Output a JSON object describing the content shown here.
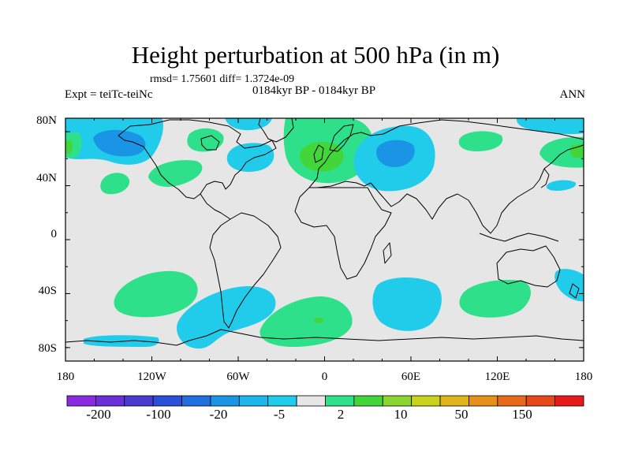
{
  "title": "Height perturbation at 500 hPa (in m)",
  "stats": "rmsd= 1.75601 diff= 1.3724e-09",
  "experiment": "Expt = teiTc-teiNc",
  "period": "0184kyr BP - 0184kyr BP",
  "season": "ANN",
  "axes": {
    "x_ticks": [
      "180",
      "120W",
      "60W",
      "0",
      "60E",
      "120E",
      "180"
    ],
    "y_ticks": [
      "80N",
      "40N",
      "0",
      "40S",
      "80S"
    ]
  },
  "colorbar": {
    "colors": [
      "#8a2be2",
      "#6a2fd8",
      "#4a3bd0",
      "#2a4fd8",
      "#1f6fe0",
      "#1a95e6",
      "#1cb5ec",
      "#20ccea",
      "#e6e6e6",
      "#2ee08a",
      "#43d63a",
      "#8ad630",
      "#c9d21c",
      "#e0b51a",
      "#e6901a",
      "#e66a1a",
      "#e6481a",
      "#e61a1a"
    ],
    "labels": [
      "-200",
      "-100",
      "-20",
      "-5",
      "2",
      "10",
      "50",
      "150"
    ]
  },
  "chart_data": {
    "type": "heatmap",
    "title": "Height perturbation at 500 hPa (in m)",
    "xlim": [
      -180,
      180
    ],
    "ylim": [
      -90,
      90
    ],
    "units": "m",
    "contour_levels": [
      "-200",
      "-100",
      "-20",
      "-5",
      "2",
      "10",
      "50",
      "150"
    ],
    "regions": [
      {
        "sign": "negative",
        "lon": [
          -180,
          -120
        ],
        "lat": [
          40,
          90
        ],
        "category": "-5 to -2"
      },
      {
        "sign": "negative",
        "lon": [
          -150,
          -135
        ],
        "lat": [
          55,
          65
        ],
        "category": "-20 to -5"
      },
      {
        "sign": "positive",
        "lon": [
          -180,
          -170
        ],
        "lat": [
          50,
          62
        ],
        "category": "2 to 10"
      },
      {
        "sign": "positive",
        "lon": [
          -105,
          -85
        ],
        "lat": [
          60,
          72
        ],
        "category": "2 to 10"
      },
      {
        "sign": "positive",
        "lon": [
          -115,
          -90
        ],
        "lat": [
          28,
          48
        ],
        "category": "2 to 10"
      },
      {
        "sign": "positive",
        "lon": [
          -155,
          -135
        ],
        "lat": [
          28,
          38
        ],
        "category": "2 to 10"
      },
      {
        "sign": "negative",
        "lon": [
          -80,
          -60
        ],
        "lat": [
          38,
          58
        ],
        "category": "-5 to -2"
      },
      {
        "sign": "negative",
        "lon": [
          -80,
          -30
        ],
        "lat": [
          75,
          90
        ],
        "category": "-5 to -2"
      },
      {
        "sign": "positive",
        "lon": [
          -40,
          25
        ],
        "lat": [
          30,
          82
        ],
        "category": "2 to 10"
      },
      {
        "sign": "positive",
        "lon": [
          0,
          20
        ],
        "lat": [
          45,
          60
        ],
        "category": "10 to 50"
      },
      {
        "sign": "negative",
        "lon": [
          10,
          80
        ],
        "lat": [
          25,
          75
        ],
        "category": "-5 to -2"
      },
      {
        "sign": "negative",
        "lon": [
          35,
          70
        ],
        "lat": [
          45,
          65
        ],
        "category": "-20 to -5"
      },
      {
        "sign": "positive",
        "lon": [
          90,
          120
        ],
        "lat": [
          58,
          72
        ],
        "category": "2 to 10"
      },
      {
        "sign": "negative",
        "lon": [
          135,
          180
        ],
        "lat": [
          72,
          90
        ],
        "category": "-5 to -2"
      },
      {
        "sign": "positive",
        "lon": [
          148,
          180
        ],
        "lat": [
          40,
          68
        ],
        "category": "2 to 10"
      },
      {
        "sign": "positive",
        "lon": [
          170,
          180
        ],
        "lat": [
          50,
          62
        ],
        "category": "10 to 50"
      },
      {
        "sign": "negative",
        "lon": [
          155,
          175
        ],
        "lat": [
          28,
          35
        ],
        "category": "-5 to -2"
      },
      {
        "sign": "positive",
        "lon": [
          -145,
          -100
        ],
        "lat": [
          -62,
          -28
        ],
        "category": "2 to 10"
      },
      {
        "sign": "negative",
        "lon": [
          -115,
          -40
        ],
        "lat": [
          -82,
          -38
        ],
        "category": "-5 to -2"
      },
      {
        "sign": "negative",
        "lon": [
          -165,
          -125
        ],
        "lat": [
          -82,
          -74
        ],
        "category": "-5 to -2"
      },
      {
        "sign": "positive",
        "lon": [
          -50,
          5
        ],
        "lat": [
          -80,
          -48
        ],
        "category": "2 to 10"
      },
      {
        "sign": "positive",
        "lon": [
          -5,
          0
        ],
        "lat": [
          -62,
          -58
        ],
        "category": "10 to 50"
      },
      {
        "sign": "negative",
        "lon": [
          35,
          80
        ],
        "lat": [
          -70,
          -30
        ],
        "category": "-5 to -2"
      },
      {
        "sign": "positive",
        "lon": [
          95,
          150
        ],
        "lat": [
          -55,
          -30
        ],
        "category": "2 to 10"
      },
      {
        "sign": "negative",
        "lon": [
          162,
          180
        ],
        "lat": [
          -50,
          -25
        ],
        "category": "-5 to -2"
      }
    ]
  }
}
